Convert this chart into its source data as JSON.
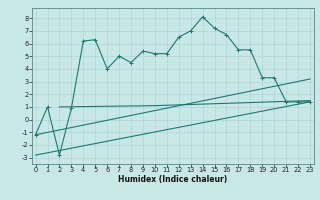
{
  "xlabel": "Humidex (Indice chaleur)",
  "bg_color": "#c8e8e8",
  "line_color": "#1a7a6e",
  "grid_color": "#b0d4d4",
  "x_main": [
    0,
    1,
    2,
    3,
    4,
    5,
    6,
    7,
    8,
    9,
    10,
    11,
    12,
    13,
    14,
    15,
    16,
    17,
    18,
    19,
    20,
    21,
    22,
    23
  ],
  "y_main": [
    -1.2,
    1.0,
    -2.8,
    0.9,
    6.2,
    6.3,
    4.0,
    5.0,
    4.5,
    5.4,
    5.2,
    5.2,
    6.5,
    7.0,
    8.1,
    7.2,
    6.7,
    5.5,
    5.5,
    3.3,
    3.3,
    1.4,
    1.4,
    1.4
  ],
  "line2_x": [
    0,
    23
  ],
  "line2_y": [
    -1.2,
    3.2
  ],
  "line3_x": [
    0,
    23
  ],
  "line3_y": [
    -2.8,
    1.4
  ],
  "line4_x": [
    2,
    10,
    23
  ],
  "line4_y": [
    1.0,
    1.1,
    1.5
  ],
  "xlim": [
    -0.3,
    23.3
  ],
  "ylim": [
    -3.5,
    8.8
  ],
  "yticks": [
    -3,
    -2,
    -1,
    0,
    1,
    2,
    3,
    4,
    5,
    6,
    7,
    8
  ],
  "xticks": [
    0,
    1,
    2,
    3,
    4,
    5,
    6,
    7,
    8,
    9,
    10,
    11,
    12,
    13,
    14,
    15,
    16,
    17,
    18,
    19,
    20,
    21,
    22,
    23
  ],
  "xlabel_fontsize": 5.5,
  "tick_fontsize": 4.8
}
